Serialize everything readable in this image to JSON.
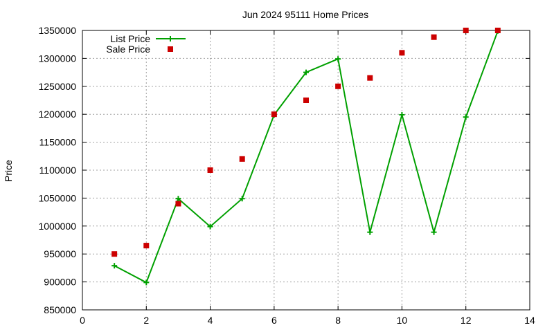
{
  "chart_data": {
    "type": "line",
    "title": "Jun 2024 95111 Home Prices",
    "xlabel": "",
    "ylabel": "Price",
    "xlim": [
      0,
      14
    ],
    "ylim": [
      850000,
      1350000
    ],
    "xticks": [
      0,
      2,
      4,
      6,
      8,
      10,
      12,
      14
    ],
    "yticks": [
      850000,
      900000,
      950000,
      1000000,
      1050000,
      1100000,
      1150000,
      1200000,
      1250000,
      1300000,
      1350000
    ],
    "grid": true,
    "legend_position": "top-left",
    "series": [
      {
        "name": "List Price",
        "style": "line-with-plus-markers",
        "color": "#00a000",
        "x": [
          1,
          2,
          3,
          4,
          5,
          6,
          7,
          8,
          9,
          10,
          11,
          12,
          13
        ],
        "y": [
          929000,
          899000,
          1049000,
          999000,
          1049000,
          1199000,
          1275000,
          1299000,
          989000,
          1199000,
          989000,
          1195000,
          1349000
        ]
      },
      {
        "name": "Sale Price",
        "style": "square-markers",
        "color": "#cc0000",
        "x": [
          1,
          2,
          3,
          4,
          5,
          6,
          7,
          8,
          9,
          10,
          11,
          12,
          13
        ],
        "y": [
          950000,
          965000,
          1040000,
          1100000,
          1120000,
          1200000,
          1225000,
          1250000,
          1265000,
          1310000,
          1338000,
          1350000,
          1350000
        ]
      }
    ]
  }
}
